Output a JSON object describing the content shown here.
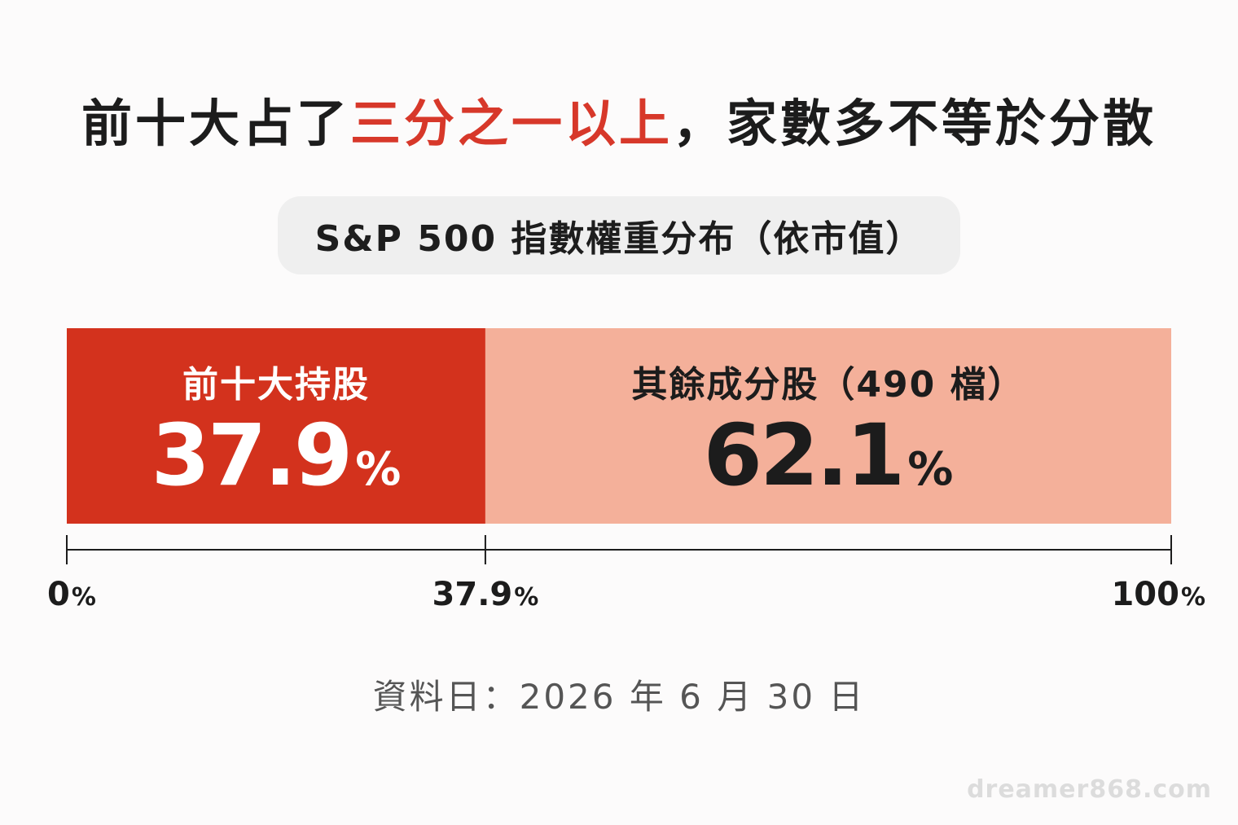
{
  "headline": {
    "part1": "前十大占了",
    "highlight": "三分之一以上",
    "part2": "，家數多不等於分散",
    "highlight_color": "#d7382a"
  },
  "subtitle": "S&P 500 指數權重分布（依市值）",
  "chart_data": {
    "type": "bar",
    "orientation": "horizontal-stacked",
    "title": "S&P 500 指數權重分布（依市值）",
    "unit": "%",
    "xlim": [
      0,
      100
    ],
    "segments": [
      {
        "name": "前十大持股",
        "value": 37.9,
        "color": "#d3321d",
        "label_color": "#ffffff"
      },
      {
        "name": "其餘成分股（490 檔）",
        "value": 62.1,
        "color": "#f4b09a",
        "label_color": "#1c1c1c"
      }
    ],
    "ticks": [
      {
        "value": 0,
        "label": "0"
      },
      {
        "value": 37.9,
        "label": "37.9"
      },
      {
        "value": 100,
        "label": "100"
      }
    ]
  },
  "footnote": "資料日：2026 年 6 月 30 日",
  "watermark": "dreamer868.com"
}
